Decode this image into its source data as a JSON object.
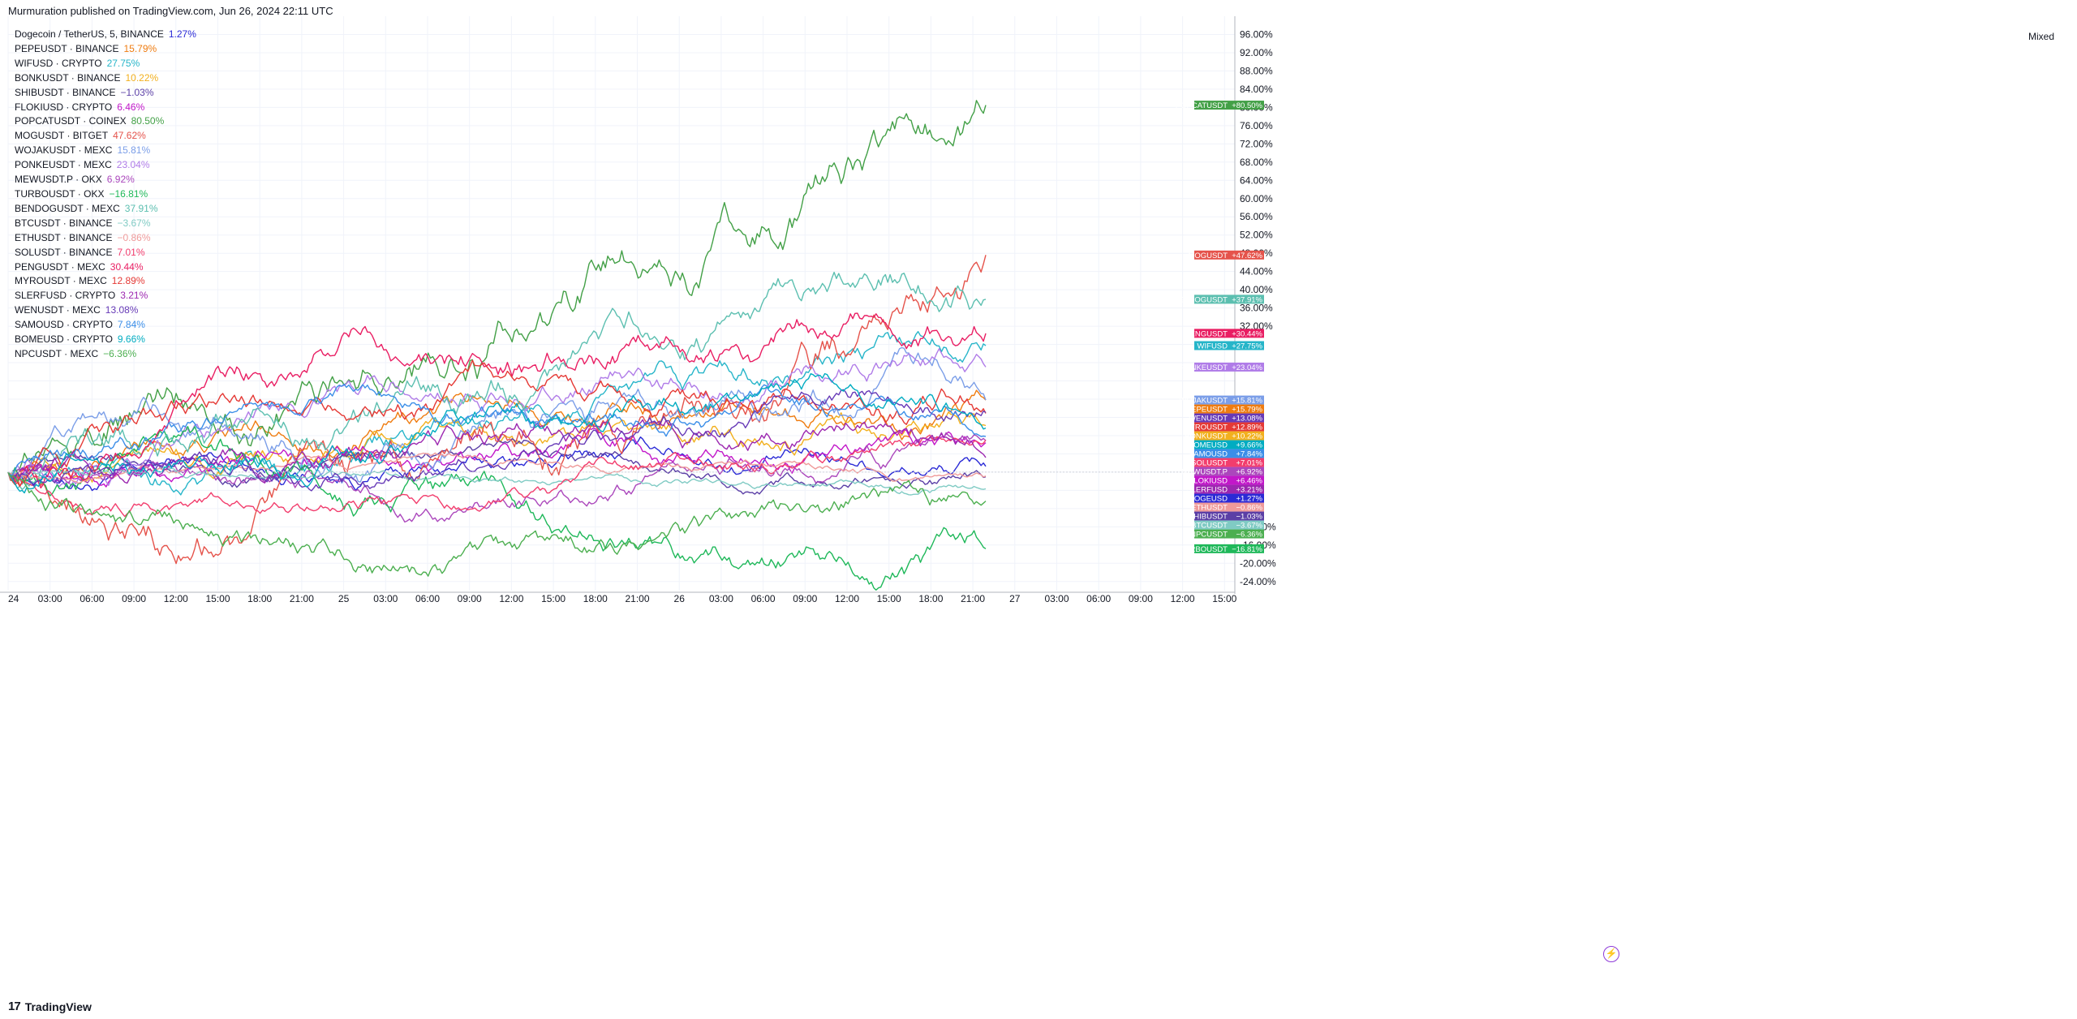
{
  "header": {
    "published_text": "Murmuration published on TradingView.com, Jun 26, 2024 22:11 UTC"
  },
  "footer": {
    "brand": "TradingView",
    "logo_glyph": "17"
  },
  "toolbar": {
    "scale_mode": "Mixed",
    "bolt_glyph": "⚡"
  },
  "chart_data": {
    "type": "line",
    "title": "Dogecoin / TetherUS, 5, BINANCE",
    "x_labels": [
      "24",
      "03:00",
      "06:00",
      "09:00",
      "12:00",
      "15:00",
      "18:00",
      "21:00",
      "25",
      "03:00",
      "06:00",
      "09:00",
      "12:00",
      "15:00",
      "18:00",
      "21:00",
      "26",
      "03:00",
      "06:00",
      "09:00",
      "12:00",
      "15:00",
      "18:00",
      "21:00",
      "27",
      "03:00",
      "06:00",
      "09:00",
      "12:00",
      "15:00"
    ],
    "y_ticks": [
      "96.00%",
      "92.00%",
      "88.00%",
      "84.00%",
      "80.00%",
      "76.00%",
      "72.00%",
      "68.00%",
      "64.00%",
      "60.00%",
      "56.00%",
      "52.00%",
      "48.00%",
      "44.00%",
      "40.00%",
      "36.00%",
      "32.00%",
      "",
      "",
      "",
      "",
      "",
      "",
      "",
      "",
      "",
      "",
      "-12.00%",
      "-16.00%",
      "-20.00%",
      "-24.00%"
    ],
    "y_unit": "%",
    "ylim": [
      -26,
      100
    ],
    "grid": true,
    "countdown": "03:22",
    "series": [
      {
        "legend": "Dogecoin / TetherUS, 5, BINANCE",
        "legend_change": "1.27%",
        "tag": "DOGEUSD",
        "tag_change": "+1.27%",
        "final": 1.27,
        "color": "#2a2ad6",
        "vol": 0.9,
        "in_legend": false
      },
      {
        "legend": "PEPEUSDT · BINANCE",
        "legend_change": "15.79%",
        "tag": "PEPEUSDT",
        "tag_change": "+15.79%",
        "final": 15.79,
        "color": "#ef7c10",
        "vol": 1.1,
        "in_legend": true
      },
      {
        "legend": "WIFUSD · CRYPTO",
        "legend_change": "27.75%",
        "tag": "WIFUSD",
        "tag_change": "+27.75%",
        "final": 27.75,
        "color": "#26b5c9",
        "vol": 1.3,
        "in_legend": true
      },
      {
        "legend": "BONKUSDT · BINANCE",
        "legend_change": "10.22%",
        "tag": "BONKUSDT",
        "tag_change": "+10.22%",
        "final": 10.22,
        "color": "#f2b01e",
        "vol": 1.1,
        "in_legend": true
      },
      {
        "legend": "SHIBUSDT · BINANCE",
        "legend_change": "−1.03%",
        "tag": "SHIBUSDT",
        "tag_change": "−1.03%",
        "final": -1.03,
        "color": "#5b3fa6",
        "vol": 0.7,
        "in_legend": true
      },
      {
        "legend": "FLOKIUSD · CRYPTO",
        "legend_change": "6.46%",
        "tag": "FLOKIUSD",
        "tag_change": "+6.46%",
        "final": 6.46,
        "color": "#c217c9",
        "vol": 1.0,
        "in_legend": true
      },
      {
        "legend": "POPCATUSDT · COINEX",
        "legend_change": "80.50%",
        "tag": "POPCATUSDT",
        "tag_change": "+80.50%",
        "final": 80.5,
        "color": "#43a047",
        "vol": 2.2,
        "in_legend": true
      },
      {
        "legend": "MOGUSDT · BITGET",
        "legend_change": "47.62%",
        "tag": "MOGUSDT",
        "tag_change": "+47.62%",
        "final": 47.62,
        "color": "#e5534b",
        "vol": 2.0,
        "in_legend": true
      },
      {
        "legend": "WOJAKUSDT · MEXC",
        "legend_change": "15.81%",
        "tag": "WOJAKUSDT",
        "tag_change": "+15.81%",
        "final": 15.81,
        "color": "#7b9ee8",
        "vol": 1.4,
        "in_legend": true
      },
      {
        "legend": "PONKEUSDT · MEXC",
        "legend_change": "23.04%",
        "tag": "PONKEUSDT",
        "tag_change": "+23.04%",
        "final": 23.04,
        "color": "#b07ce8",
        "vol": 1.2,
        "in_legend": true
      },
      {
        "legend": "MEWUSDT.P · OKX",
        "legend_change": "6.92%",
        "tag": "MEWUSDT.P",
        "tag_change": "+6.92%",
        "final": 6.92,
        "color": "#ab47bc",
        "vol": 1.0,
        "in_legend": true
      },
      {
        "legend": "TURBOUSDT · OKX",
        "legend_change": "−16.81%",
        "tag": "TURBOUSDT",
        "tag_change": "−16.81%",
        "final": -16.81,
        "color": "#1fb85a",
        "vol": 1.3,
        "in_legend": true
      },
      {
        "legend": "BENDOGUSDT · MEXC",
        "legend_change": "37.91%",
        "tag": "BENDOGUSDT",
        "tag_change": "+37.91%",
        "final": 37.91,
        "color": "#5cbfb0",
        "vol": 1.6,
        "in_legend": true
      },
      {
        "legend": "BTCUSDT · BINANCE",
        "legend_change": "−3.67%",
        "tag": "BTCUSDT",
        "tag_change": "−3.67%",
        "final": -3.67,
        "color": "#80cbc4",
        "vol": 0.4,
        "in_legend": true
      },
      {
        "legend": "ETHUSDT · BINANCE",
        "legend_change": "−0.86%",
        "tag": "ETHUSDT",
        "tag_change": "−0.86%",
        "final": -0.86,
        "color": "#ef9a9a",
        "vol": 0.4,
        "in_legend": true
      },
      {
        "legend": "SOLUSDT · BINANCE",
        "legend_change": "7.01%",
        "tag": "SOLUSDT",
        "tag_change": "+7.01%",
        "final": 7.01,
        "color": "#f23d6d",
        "vol": 0.8,
        "in_legend": true
      },
      {
        "legend": "PENGUSDT · MEXC",
        "legend_change": "30.44%",
        "tag": "PENGUSDT",
        "tag_change": "+30.44%",
        "final": 30.44,
        "color": "#e91e63",
        "vol": 1.5,
        "in_legend": true
      },
      {
        "legend": "MYROUSDT · MEXC",
        "legend_change": "12.89%",
        "tag": "MYROUSDT",
        "tag_change": "+12.89%",
        "final": 12.89,
        "color": "#e53935",
        "vol": 1.2,
        "in_legend": true
      },
      {
        "legend": "SLERFUSD · CRYPTO",
        "legend_change": "3.21%",
        "tag": "SLERFUSD",
        "tag_change": "+3.21%",
        "final": 3.21,
        "color": "#9c27b0",
        "vol": 1.1,
        "in_legend": true
      },
      {
        "legend": "WENUSDT · MEXC",
        "legend_change": "13.08%",
        "tag": "WENUSDT",
        "tag_change": "+13.08%",
        "final": 13.08,
        "color": "#673ab7",
        "vol": 1.0,
        "in_legend": true
      },
      {
        "legend": "SAMOUSD · CRYPTO",
        "legend_change": "7.84%",
        "tag": "SAMOUSD",
        "tag_change": "+7.84%",
        "final": 7.84,
        "color": "#3b8ee8",
        "vol": 1.0,
        "in_legend": true
      },
      {
        "legend": "BOMEUSD · CRYPTO",
        "legend_change": "9.66%",
        "tag": "BOMEUSD",
        "tag_change": "+9.66%",
        "final": 9.66,
        "color": "#00acc1",
        "vol": 1.1,
        "in_legend": true
      },
      {
        "legend": "NPCUSDT · MEXC",
        "legend_change": "−6.36%",
        "tag": "NPCUSDT",
        "tag_change": "−6.36%",
        "final": -6.36,
        "color": "#4caf50",
        "vol": 1.2,
        "in_legend": true
      }
    ]
  }
}
